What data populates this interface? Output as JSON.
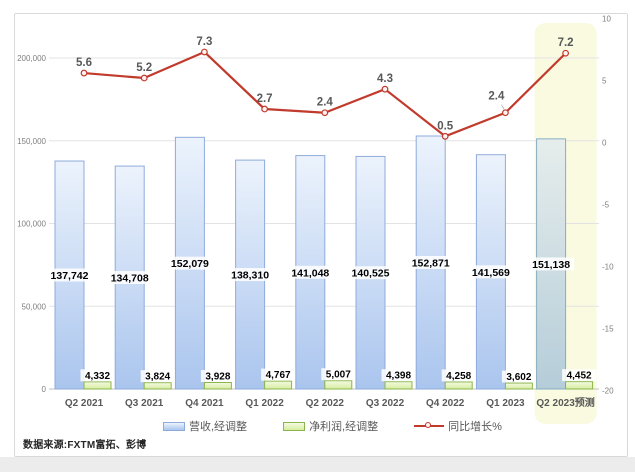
{
  "source_note": "数据来源:FXTM富拓、彭博",
  "legend": {
    "revenue_label": "营收,经调整",
    "profit_label": "净利润,经调整",
    "growth_label": "同比增长%"
  },
  "colors": {
    "revenue_fill_top": "#ecf3fc",
    "revenue_fill_bottom": "#aac5ee",
    "revenue_border": "#8fabdc",
    "forecast_fill_top": "#e6edec",
    "forecast_fill_bottom": "#b5cdd9",
    "forecast_border": "#85adc2",
    "profit_fill_top": "#f4fae2",
    "profit_fill_bottom": "#d7eda0",
    "profit_border": "#8bb54c",
    "growth_line": "#c13a2c",
    "highlight_band": "#fafae0",
    "gridline": "#e3e3e3",
    "axis_line": "#bfbfbf",
    "axis_text": "#7f7f7f",
    "category_text": "#595959",
    "line_label_text": "#595959",
    "bar_label_text": "#000000"
  },
  "chart_data": {
    "type": "combo-bar-line",
    "title": "",
    "categories": [
      "Q2 2021",
      "Q3 2021",
      "Q4 2021",
      "Q1 2022",
      "Q2 2022",
      "Q3 2022",
      "Q4 2022",
      "Q1 2023",
      "Q2 2023预测"
    ],
    "series": [
      {
        "name": "营收,经调整",
        "type": "bar",
        "axis": "left",
        "values": [
          137742,
          134708,
          152079,
          138310,
          141048,
          140525,
          152871,
          141569,
          151138
        ]
      },
      {
        "name": "净利润,经调整",
        "type": "bar",
        "axis": "left",
        "values": [
          4332,
          3824,
          3928,
          4767,
          5007,
          4398,
          4258,
          3602,
          4452
        ]
      },
      {
        "name": "同比增长%",
        "type": "line",
        "axis": "right",
        "values": [
          5.6,
          5.2,
          7.3,
          2.7,
          2.4,
          4.3,
          0.5,
          2.4,
          7.2
        ]
      }
    ],
    "left_axis": {
      "min": 0,
      "max": 200000,
      "step": 50000,
      "tick_labels": [
        "200,000",
        "150,000",
        "100,000",
        "50,000",
        "0"
      ]
    },
    "right_axis": {
      "min": -20,
      "max": 10,
      "step": 5,
      "tick_labels": [
        "10",
        "5",
        "0",
        "-5",
        "-10",
        "-15",
        "-20"
      ]
    },
    "highlight": {
      "category_index": 8,
      "label": "Q2 2023预测"
    },
    "grid": true,
    "legend_position": "bottom"
  }
}
